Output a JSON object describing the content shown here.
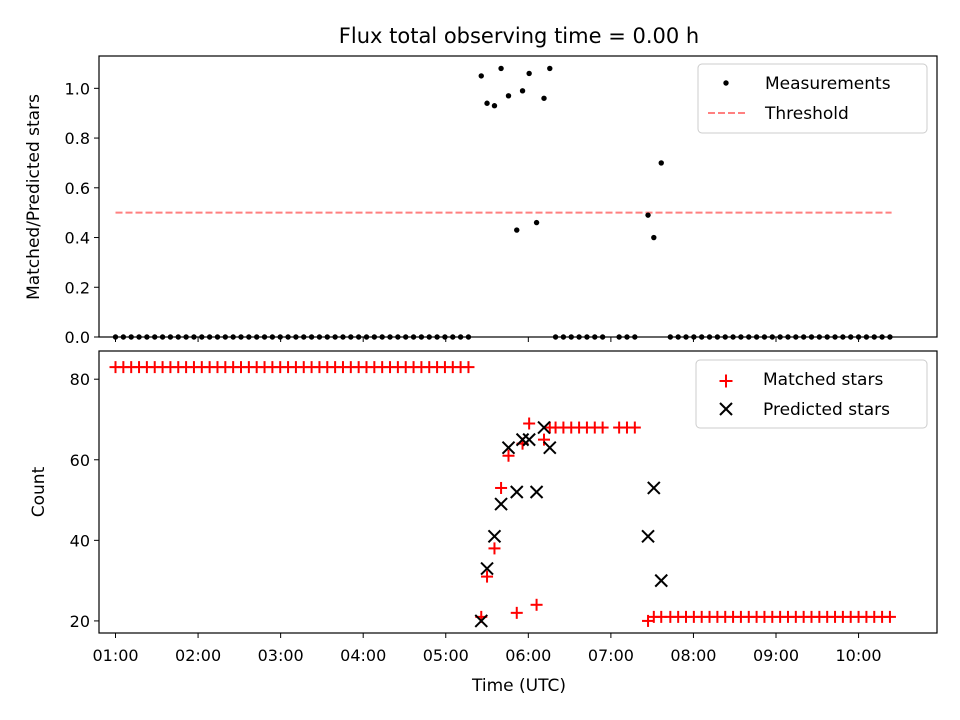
{
  "chart_data": {
    "title": "Flux total observing time = 0.00 h",
    "x_axis": {
      "label": "Time (UTC)",
      "range_hours": [
        0.8,
        10.95
      ],
      "ticks": [
        {
          "value": 1,
          "label": "01:00"
        },
        {
          "value": 2,
          "label": "02:00"
        },
        {
          "value": 3,
          "label": "03:00"
        },
        {
          "value": 4,
          "label": "04:00"
        },
        {
          "value": 5,
          "label": "05:00"
        },
        {
          "value": 6,
          "label": "06:00"
        },
        {
          "value": 7,
          "label": "07:00"
        },
        {
          "value": 8,
          "label": "08:00"
        },
        {
          "value": 9,
          "label": "09:00"
        },
        {
          "value": 10,
          "label": "10:00"
        }
      ]
    },
    "top_panel": {
      "type": "scatter",
      "ylabel": "Matched/Predicted stars",
      "ylim": [
        0,
        1.13
      ],
      "yticks": [
        "0.0",
        "0.2",
        "0.4",
        "0.6",
        "0.8",
        "1.0"
      ],
      "legend": [
        "Measurements",
        "Threshold"
      ],
      "legend_position": "top-right",
      "threshold": {
        "name": "Threshold",
        "value": 0.5,
        "x_range": [
          1.0,
          10.4
        ],
        "color": "#ff8080"
      },
      "measurements": {
        "name": "Measurements",
        "color": "#000000",
        "zero_segments": [
          {
            "start": 1.0,
            "end": 5.35,
            "step": 0.095
          },
          {
            "start": 6.33,
            "end": 6.9,
            "step": 0.095
          },
          {
            "start": 7.1,
            "end": 7.38,
            "step": 0.095
          },
          {
            "start": 7.72,
            "end": 10.45,
            "step": 0.095
          }
        ],
        "points": [
          {
            "x": 5.43,
            "y": 1.05
          },
          {
            "x": 5.5,
            "y": 0.94
          },
          {
            "x": 5.59,
            "y": 0.93
          },
          {
            "x": 5.67,
            "y": 1.08
          },
          {
            "x": 5.76,
            "y": 0.97
          },
          {
            "x": 5.86,
            "y": 0.43
          },
          {
            "x": 5.93,
            "y": 0.99
          },
          {
            "x": 6.01,
            "y": 1.06
          },
          {
            "x": 6.1,
            "y": 0.46
          },
          {
            "x": 6.19,
            "y": 0.96
          },
          {
            "x": 6.26,
            "y": 1.08
          },
          {
            "x": 7.45,
            "y": 0.49
          },
          {
            "x": 7.52,
            "y": 0.4
          },
          {
            "x": 7.61,
            "y": 0.7
          }
        ]
      }
    },
    "bottom_panel": {
      "type": "scatter",
      "ylabel": "Count",
      "ylim": [
        17,
        87
      ],
      "yticks": [
        "20",
        "40",
        "60",
        "80"
      ],
      "legend": [
        "Matched stars",
        "Predicted stars"
      ],
      "legend_position": "top-right",
      "matched": {
        "name": "Matched stars",
        "color": "#ff0000",
        "segments": [
          {
            "start": 1.0,
            "end": 5.35,
            "step": 0.095,
            "value": 83
          },
          {
            "start": 6.33,
            "end": 6.9,
            "step": 0.095,
            "value": 68
          },
          {
            "start": 7.1,
            "end": 7.38,
            "step": 0.095,
            "value": 68
          },
          {
            "start": 7.72,
            "end": 10.45,
            "step": 0.095,
            "value": 21
          }
        ],
        "points": [
          {
            "x": 5.43,
            "y": 21
          },
          {
            "x": 5.5,
            "y": 31
          },
          {
            "x": 5.59,
            "y": 38
          },
          {
            "x": 5.67,
            "y": 53
          },
          {
            "x": 5.76,
            "y": 61
          },
          {
            "x": 5.86,
            "y": 22
          },
          {
            "x": 5.93,
            "y": 64
          },
          {
            "x": 6.01,
            "y": 69
          },
          {
            "x": 6.1,
            "y": 24
          },
          {
            "x": 6.19,
            "y": 65
          },
          {
            "x": 6.26,
            "y": 68
          },
          {
            "x": 7.45,
            "y": 20
          },
          {
            "x": 7.52,
            "y": 21
          },
          {
            "x": 7.61,
            "y": 21
          }
        ]
      },
      "predicted": {
        "name": "Predicted stars",
        "color": "#000000",
        "points": [
          {
            "x": 5.43,
            "y": 20
          },
          {
            "x": 5.5,
            "y": 33
          },
          {
            "x": 5.59,
            "y": 41
          },
          {
            "x": 5.67,
            "y": 49
          },
          {
            "x": 5.76,
            "y": 63
          },
          {
            "x": 5.86,
            "y": 52
          },
          {
            "x": 5.93,
            "y": 65
          },
          {
            "x": 6.01,
            "y": 65
          },
          {
            "x": 6.1,
            "y": 52
          },
          {
            "x": 6.19,
            "y": 68
          },
          {
            "x": 6.26,
            "y": 63
          },
          {
            "x": 7.45,
            "y": 41
          },
          {
            "x": 7.52,
            "y": 53
          },
          {
            "x": 7.61,
            "y": 30
          }
        ]
      }
    }
  }
}
